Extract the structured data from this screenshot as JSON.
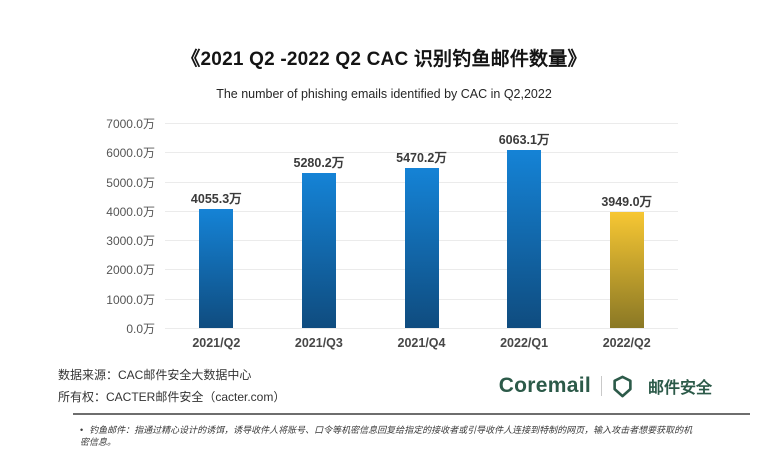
{
  "chart": {
    "title": "《2021 Q2 -2022 Q2 CAC 识别钓鱼邮件数量》",
    "subtitle": "The number of phishing emails identified by CAC in Q2,2022"
  },
  "chart_data": {
    "type": "bar",
    "categories": [
      "2021/Q2",
      "2021/Q3",
      "2021/Q4",
      "2022/Q1",
      "2022/Q2"
    ],
    "values": [
      4055.3,
      5280.2,
      5470.2,
      6063.1,
      3949.0
    ],
    "value_labels": [
      "4055.3万",
      "5280.2万",
      "5470.2万",
      "6063.1万",
      "3949.0万"
    ],
    "unit": "万",
    "ylim": [
      0,
      7000
    ],
    "ytick_labels": [
      "0.0万",
      "1000.0万",
      "2000.0万",
      "3000.0万",
      "4000.0万",
      "5000.0万",
      "6000.0万",
      "7000.0万"
    ],
    "grid": true,
    "legend": "none",
    "highlight_index": 4,
    "colors": {
      "bar_top": "#1583d6",
      "bar_bottom": "#0f4c7f",
      "highlight_top": "#f7c733",
      "highlight_bottom": "#8a7825",
      "gridline": "#ebebeb"
    }
  },
  "footer": {
    "source_line": "数据来源：CAC邮件安全大数据中心",
    "ownership_line": "所有权：CACTER邮件安全（cacter.com）",
    "logo_text": "Coremail",
    "logo_product": "邮件安全",
    "logo_color": "#2c5a49"
  },
  "note": {
    "bullet": "•",
    "text": "钓鱼邮件：指通过精心设计的诱饵，诱导收件人将账号、口令等机密信息回复给指定的接收者或引导收件人连接到特制的网页，输入攻击者想要获取的机密信息。"
  }
}
